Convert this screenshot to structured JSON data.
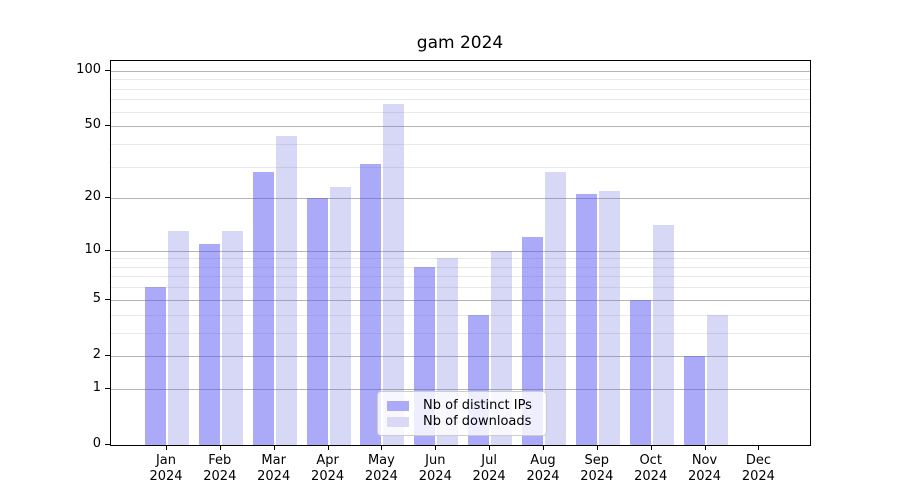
{
  "chart_data": {
    "type": "bar",
    "title": "gam 2024",
    "categories": [
      {
        "month": "Jan",
        "year": "2024"
      },
      {
        "month": "Feb",
        "year": "2024"
      },
      {
        "month": "Mar",
        "year": "2024"
      },
      {
        "month": "Apr",
        "year": "2024"
      },
      {
        "month": "May",
        "year": "2024"
      },
      {
        "month": "Jun",
        "year": "2024"
      },
      {
        "month": "Jul",
        "year": "2024"
      },
      {
        "month": "Aug",
        "year": "2024"
      },
      {
        "month": "Sep",
        "year": "2024"
      },
      {
        "month": "Oct",
        "year": "2024"
      },
      {
        "month": "Nov",
        "year": "2024"
      },
      {
        "month": "Dec",
        "year": "2024"
      }
    ],
    "series": [
      {
        "name": "Nb of distinct IPs",
        "swatch_color": "#aaaaf8",
        "fill_color": "rgba(86,86,241,0.5)",
        "values": [
          6,
          11,
          28,
          20,
          31,
          8,
          4,
          12,
          21,
          5,
          2,
          0
        ]
      },
      {
        "name": "Nb of downloads",
        "swatch_color": "#d9d9f6",
        "fill_color": "rgba(97,97,218,0.25)",
        "values": [
          13,
          13,
          44,
          23,
          66,
          9,
          10,
          28,
          22,
          14,
          4,
          0
        ]
      }
    ],
    "y_axis": {
      "scale": "log1p",
      "ticks": [
        0,
        1,
        2,
        5,
        10,
        20,
        50,
        100
      ],
      "minor_gridlines": [
        3,
        4,
        6,
        7,
        8,
        9,
        30,
        40,
        60,
        70,
        80,
        90
      ],
      "max": 113
    },
    "xlabel": "",
    "ylabel": "",
    "grid": "on",
    "legend_position": "bottom-center"
  }
}
